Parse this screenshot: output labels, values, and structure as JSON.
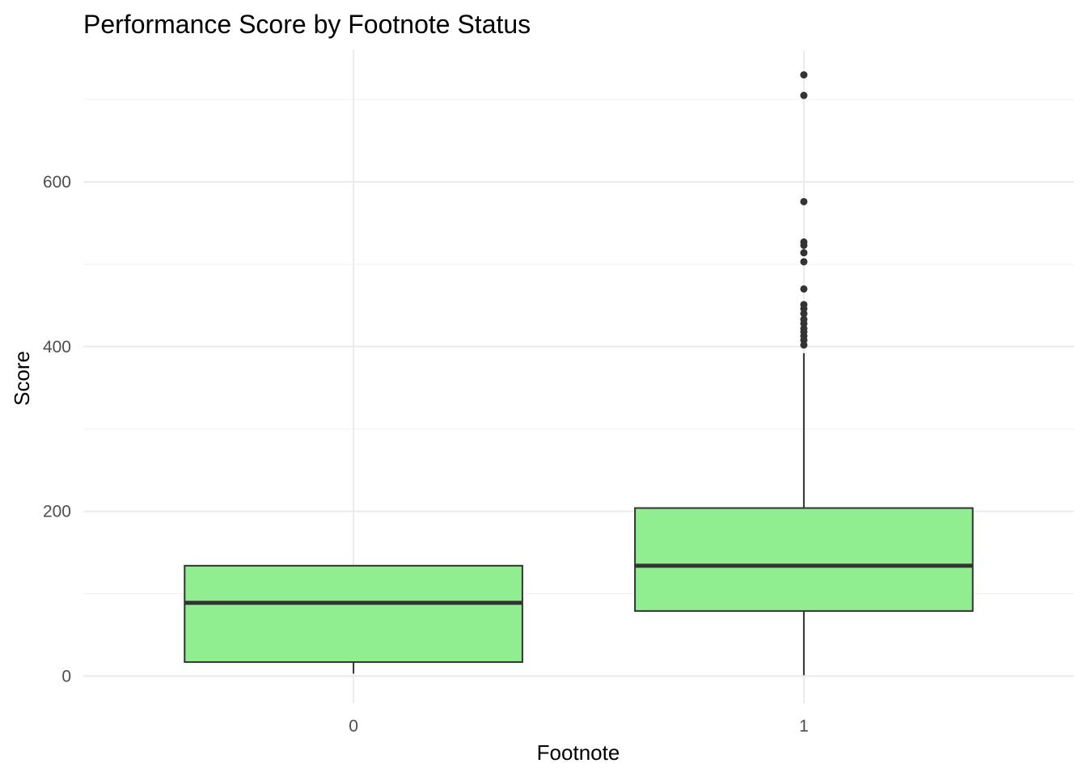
{
  "chart_data": {
    "type": "boxplot",
    "title": "Performance Score by Footnote Status",
    "xlabel": "Footnote",
    "ylabel": "Score",
    "categories": [
      "0",
      "1"
    ],
    "ylim": [
      -33,
      760
    ],
    "y_ticks": [
      0,
      200,
      400,
      600
    ],
    "y_tick_labels": [
      "0",
      "200",
      "400",
      "600"
    ],
    "grid": true,
    "box_fill": "#90EE90",
    "box_stroke": "#333333",
    "boxes": [
      {
        "category": "0",
        "whisker_low": 3,
        "q1": 17,
        "median": 89,
        "q3": 134,
        "whisker_high": 134,
        "outliers": []
      },
      {
        "category": "1",
        "whisker_low": 1,
        "q1": 79,
        "median": 134,
        "q3": 204,
        "whisker_high": 392,
        "outliers": [
          402,
          408,
          413,
          418,
          422,
          428,
          433,
          440,
          446,
          451,
          470,
          503,
          514,
          523,
          527,
          576,
          705,
          730
        ]
      }
    ]
  }
}
